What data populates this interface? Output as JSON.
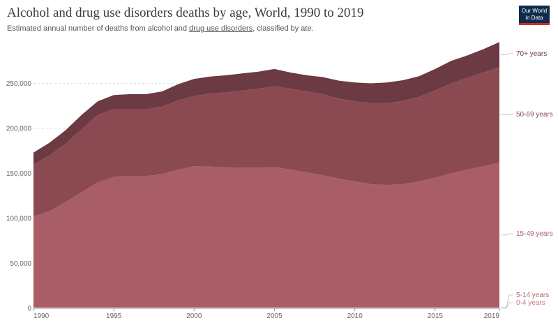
{
  "header": {
    "title": "Alcohol and drug use disorders deaths by age, World, 1990 to 2019",
    "subtitle_pre": "Estimated annual number of deaths from alcohol and ",
    "subtitle_link": "drug use disorders",
    "subtitle_post": ", classified by ate.",
    "logo_line1": "Our World",
    "logo_line2": "in Data"
  },
  "chart_data": {
    "type": "area",
    "title": "Alcohol and drug use disorders deaths by age, World, 1990 to 2019",
    "x": [
      1990,
      1991,
      1992,
      1993,
      1994,
      1995,
      1996,
      1997,
      1998,
      1999,
      2000,
      2001,
      2002,
      2003,
      2004,
      2005,
      2006,
      2007,
      2008,
      2009,
      2010,
      2011,
      2012,
      2013,
      2014,
      2015,
      2016,
      2017,
      2018,
      2019
    ],
    "xlim": [
      1990,
      2019
    ],
    "ylim": [
      0,
      300000
    ],
    "x_ticks": [
      "1990",
      "1995",
      "2000",
      "2005",
      "2010",
      "2015",
      "2019"
    ],
    "y_ticks": [
      "0",
      "50,000",
      "100,000",
      "150,000",
      "200,000",
      "250,000"
    ],
    "y_tick_values": [
      0,
      50000,
      100000,
      150000,
      200000,
      250000
    ],
    "stacked": true,
    "series": [
      {
        "name": "0-4 years",
        "color": "#e8a0a8",
        "values": [
          300,
          300,
          300,
          300,
          300,
          300,
          300,
          300,
          300,
          300,
          300,
          300,
          300,
          300,
          300,
          300,
          300,
          300,
          300,
          300,
          300,
          300,
          300,
          300,
          300,
          300,
          300,
          300,
          300,
          300
        ]
      },
      {
        "name": "5-14 years",
        "color": "#d99aa2",
        "values": [
          700,
          700,
          700,
          700,
          700,
          700,
          700,
          700,
          700,
          700,
          700,
          700,
          700,
          700,
          700,
          700,
          700,
          700,
          700,
          700,
          700,
          700,
          700,
          700,
          700,
          700,
          700,
          700,
          700,
          700
        ]
      },
      {
        "name": "15-49 years",
        "color": "#a85d67",
        "values": [
          101000,
          107000,
          117000,
          128000,
          139000,
          145000,
          146000,
          146000,
          148000,
          153000,
          157000,
          156500,
          155500,
          155000,
          155000,
          156000,
          153000,
          150000,
          147000,
          143000,
          140000,
          137000,
          136000,
          137000,
          140000,
          144000,
          149000,
          153000,
          157000,
          161000
        ]
      },
      {
        "name": "50-69 years",
        "color": "#8b4a52",
        "values": [
          58000,
          62000,
          65000,
          70000,
          75000,
          75000,
          74000,
          74000,
          75000,
          77000,
          78000,
          81000,
          83500,
          86000,
          88000,
          90000,
          90000,
          90000,
          90000,
          89000,
          89000,
          90000,
          91000,
          92500,
          94000,
          97000,
          100000,
          102000,
          104000,
          106000
        ]
      },
      {
        "name": "70+ years",
        "color": "#6b3a42",
        "values": [
          13000,
          14000,
          15000,
          16000,
          15000,
          16000,
          17000,
          17000,
          17000,
          18000,
          19000,
          19000,
          19000,
          19000,
          19000,
          19000,
          18000,
          18000,
          19000,
          20000,
          21000,
          22000,
          23000,
          23000,
          23000,
          24000,
          25000,
          25000,
          26000,
          28000
        ]
      }
    ],
    "legend": "right-aligned labels",
    "grid": true
  }
}
